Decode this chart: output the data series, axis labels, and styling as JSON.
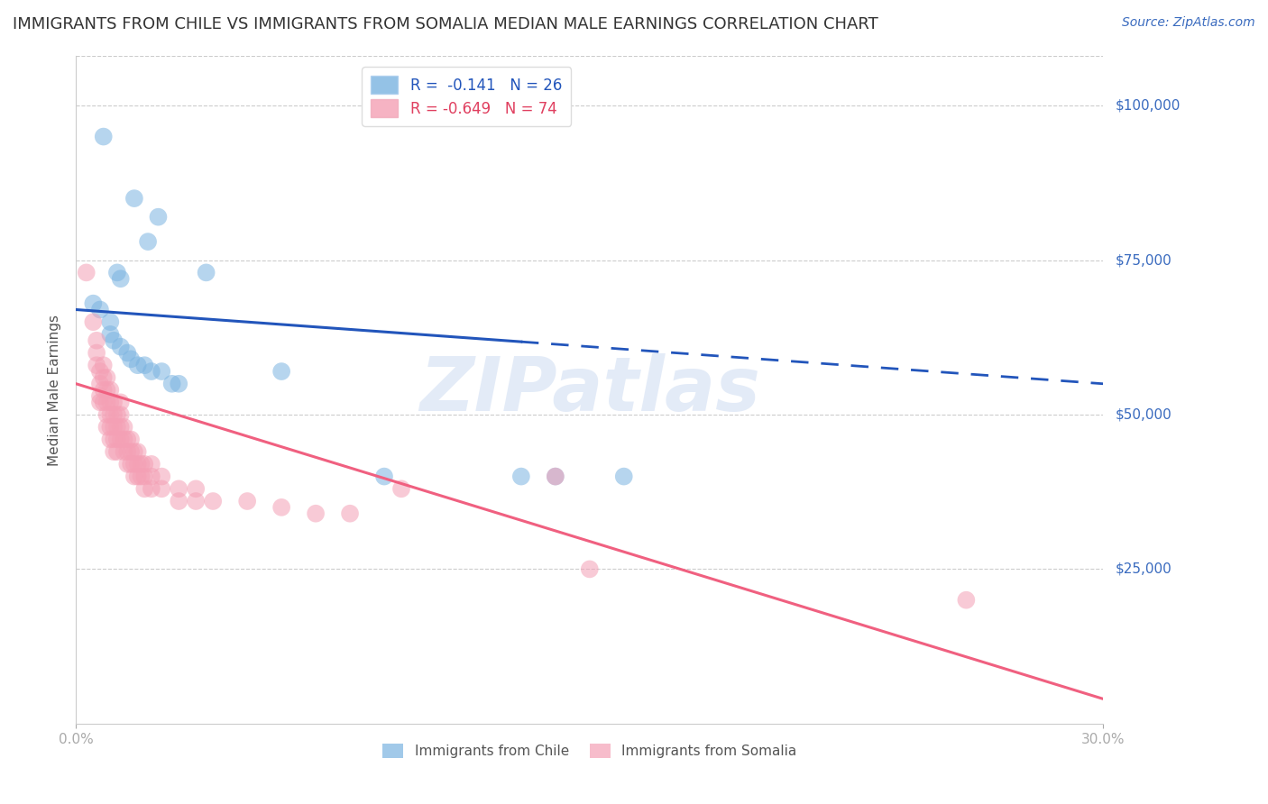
{
  "title": "IMMIGRANTS FROM CHILE VS IMMIGRANTS FROM SOMALIA MEDIAN MALE EARNINGS CORRELATION CHART",
  "source": "Source: ZipAtlas.com",
  "ylabel": "Median Male Earnings",
  "ytick_labels": [
    "$100,000",
    "$75,000",
    "$50,000",
    "$25,000"
  ],
  "ytick_values": [
    100000,
    75000,
    50000,
    25000
  ],
  "ylim": [
    0,
    108000
  ],
  "xlim": [
    0.0,
    0.3
  ],
  "watermark": "ZIPatlas",
  "legend_chile": {
    "R": "-0.141",
    "N": "26"
  },
  "legend_somalia": {
    "R": "-0.649",
    "N": "74"
  },
  "chile_color": "#7ab3e0",
  "somalia_color": "#f4a0b5",
  "chile_line_color": "#2255bb",
  "somalia_line_color": "#f06080",
  "background_color": "#ffffff",
  "grid_color": "#cccccc",
  "chile_points": [
    [
      0.008,
      95000
    ],
    [
      0.017,
      85000
    ],
    [
      0.024,
      82000
    ],
    [
      0.021,
      78000
    ],
    [
      0.012,
      73000
    ],
    [
      0.013,
      72000
    ],
    [
      0.038,
      73000
    ],
    [
      0.005,
      68000
    ],
    [
      0.007,
      67000
    ],
    [
      0.01,
      65000
    ],
    [
      0.01,
      63000
    ],
    [
      0.011,
      62000
    ],
    [
      0.013,
      61000
    ],
    [
      0.015,
      60000
    ],
    [
      0.016,
      59000
    ],
    [
      0.018,
      58000
    ],
    [
      0.02,
      58000
    ],
    [
      0.022,
      57000
    ],
    [
      0.025,
      57000
    ],
    [
      0.028,
      55000
    ],
    [
      0.03,
      55000
    ],
    [
      0.06,
      57000
    ],
    [
      0.09,
      40000
    ],
    [
      0.13,
      40000
    ],
    [
      0.14,
      40000
    ],
    [
      0.16,
      40000
    ]
  ],
  "somalia_points": [
    [
      0.003,
      73000
    ],
    [
      0.005,
      65000
    ],
    [
      0.006,
      62000
    ],
    [
      0.006,
      60000
    ],
    [
      0.006,
      58000
    ],
    [
      0.007,
      57000
    ],
    [
      0.007,
      55000
    ],
    [
      0.007,
      53000
    ],
    [
      0.007,
      52000
    ],
    [
      0.008,
      58000
    ],
    [
      0.008,
      56000
    ],
    [
      0.008,
      54000
    ],
    [
      0.008,
      52000
    ],
    [
      0.009,
      56000
    ],
    [
      0.009,
      54000
    ],
    [
      0.009,
      52000
    ],
    [
      0.009,
      50000
    ],
    [
      0.009,
      48000
    ],
    [
      0.01,
      54000
    ],
    [
      0.01,
      52000
    ],
    [
      0.01,
      50000
    ],
    [
      0.01,
      48000
    ],
    [
      0.01,
      46000
    ],
    [
      0.011,
      52000
    ],
    [
      0.011,
      50000
    ],
    [
      0.011,
      48000
    ],
    [
      0.011,
      46000
    ],
    [
      0.011,
      44000
    ],
    [
      0.012,
      50000
    ],
    [
      0.012,
      48000
    ],
    [
      0.012,
      46000
    ],
    [
      0.012,
      44000
    ],
    [
      0.013,
      52000
    ],
    [
      0.013,
      50000
    ],
    [
      0.013,
      48000
    ],
    [
      0.013,
      46000
    ],
    [
      0.014,
      48000
    ],
    [
      0.014,
      46000
    ],
    [
      0.014,
      44000
    ],
    [
      0.015,
      46000
    ],
    [
      0.015,
      44000
    ],
    [
      0.015,
      42000
    ],
    [
      0.016,
      46000
    ],
    [
      0.016,
      44000
    ],
    [
      0.016,
      42000
    ],
    [
      0.017,
      44000
    ],
    [
      0.017,
      42000
    ],
    [
      0.017,
      40000
    ],
    [
      0.018,
      44000
    ],
    [
      0.018,
      42000
    ],
    [
      0.018,
      40000
    ],
    [
      0.019,
      42000
    ],
    [
      0.019,
      40000
    ],
    [
      0.02,
      42000
    ],
    [
      0.02,
      40000
    ],
    [
      0.02,
      38000
    ],
    [
      0.022,
      42000
    ],
    [
      0.022,
      40000
    ],
    [
      0.022,
      38000
    ],
    [
      0.025,
      40000
    ],
    [
      0.025,
      38000
    ],
    [
      0.03,
      38000
    ],
    [
      0.03,
      36000
    ],
    [
      0.035,
      38000
    ],
    [
      0.035,
      36000
    ],
    [
      0.04,
      36000
    ],
    [
      0.05,
      36000
    ],
    [
      0.06,
      35000
    ],
    [
      0.07,
      34000
    ],
    [
      0.08,
      34000
    ],
    [
      0.095,
      38000
    ],
    [
      0.14,
      40000
    ],
    [
      0.15,
      25000
    ],
    [
      0.26,
      20000
    ]
  ],
  "title_fontsize": 13,
  "axis_label_fontsize": 11,
  "tick_fontsize": 11,
  "legend_fontsize": 12,
  "watermark_fontsize": 60,
  "source_fontsize": 10
}
